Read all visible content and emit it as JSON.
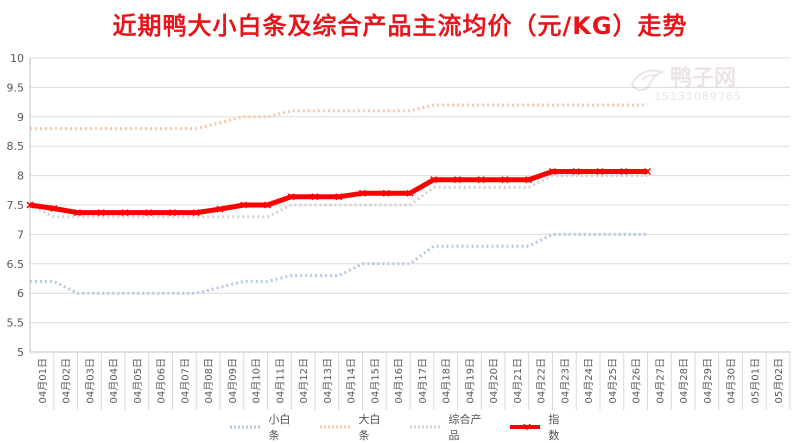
{
  "title": "近期鸭大小白条及综合产品主流均价（元/KG）走势",
  "watermark": {
    "text": "鸭子网",
    "phone": "15131089765"
  },
  "colors": {
    "title": "#e8141a",
    "small": "#b7c9e1",
    "big": "#f5c7ab",
    "combo": "#d3d3d3",
    "index": "#ff0000",
    "grid": "#dcdcdc"
  },
  "chart_data": {
    "type": "line",
    "title": "近期鸭大小白条及综合产品主流均价（元/KG）走势",
    "ylim": [
      5,
      10
    ],
    "yticks": [
      "5",
      "5.5",
      "6",
      "6.5",
      "7",
      "7.5",
      "8",
      "8.5",
      "9",
      "9.5",
      "10"
    ],
    "grid": true,
    "legend_position": "bottom",
    "categories": [
      "04月01日",
      "04月02日",
      "04月03日",
      "04月04日",
      "04月05日",
      "04月06日",
      "04月07日",
      "04月08日",
      "04月09日",
      "04月10日",
      "04月11日",
      "04月12日",
      "04月13日",
      "04月14日",
      "04月15日",
      "04月16日",
      "04月17日",
      "04月18日",
      "04月19日",
      "04月20日",
      "04月21日",
      "04月22日",
      "04月23日",
      "04月24日",
      "04月25日",
      "04月26日",
      "04月27日",
      "04月28日",
      "04月29日",
      "04月30日",
      "05月01日",
      "05月02日"
    ],
    "series": [
      {
        "name": "小白条",
        "values": [
          6.2,
          6.2,
          6.0,
          6.0,
          6.0,
          6.0,
          6.0,
          6.0,
          6.1,
          6.2,
          6.2,
          6.3,
          6.3,
          6.3,
          6.5,
          6.5,
          6.5,
          6.8,
          6.8,
          6.8,
          6.8,
          6.8,
          7.0,
          7.0,
          7.0,
          7.0,
          7.0,
          null,
          null,
          null,
          null,
          null
        ]
      },
      {
        "name": "大白条",
        "values": [
          8.8,
          8.8,
          8.8,
          8.8,
          8.8,
          8.8,
          8.8,
          8.8,
          8.9,
          9.0,
          9.0,
          9.1,
          9.1,
          9.1,
          9.1,
          9.1,
          9.1,
          9.2,
          9.2,
          9.2,
          9.2,
          9.2,
          9.2,
          9.2,
          9.2,
          9.2,
          9.2,
          null,
          null,
          null,
          null,
          null
        ]
      },
      {
        "name": "综合产品",
        "values": [
          7.5,
          7.3,
          7.3,
          7.3,
          7.3,
          7.3,
          7.3,
          7.3,
          7.3,
          7.3,
          7.3,
          7.5,
          7.5,
          7.5,
          7.5,
          7.5,
          7.5,
          7.8,
          7.8,
          7.8,
          7.8,
          7.8,
          8.0,
          8.0,
          8.0,
          8.0,
          8.0,
          null,
          null,
          null,
          null,
          null
        ]
      },
      {
        "name": "指数",
        "values": [
          7.5,
          7.44,
          7.37,
          7.37,
          7.37,
          7.37,
          7.37,
          7.37,
          7.43,
          7.5,
          7.5,
          7.64,
          7.64,
          7.64,
          7.7,
          7.7,
          7.7,
          7.93,
          7.93,
          7.93,
          7.93,
          7.93,
          8.07,
          8.07,
          8.07,
          8.07,
          8.07,
          null,
          null,
          null,
          null,
          null
        ]
      }
    ]
  }
}
